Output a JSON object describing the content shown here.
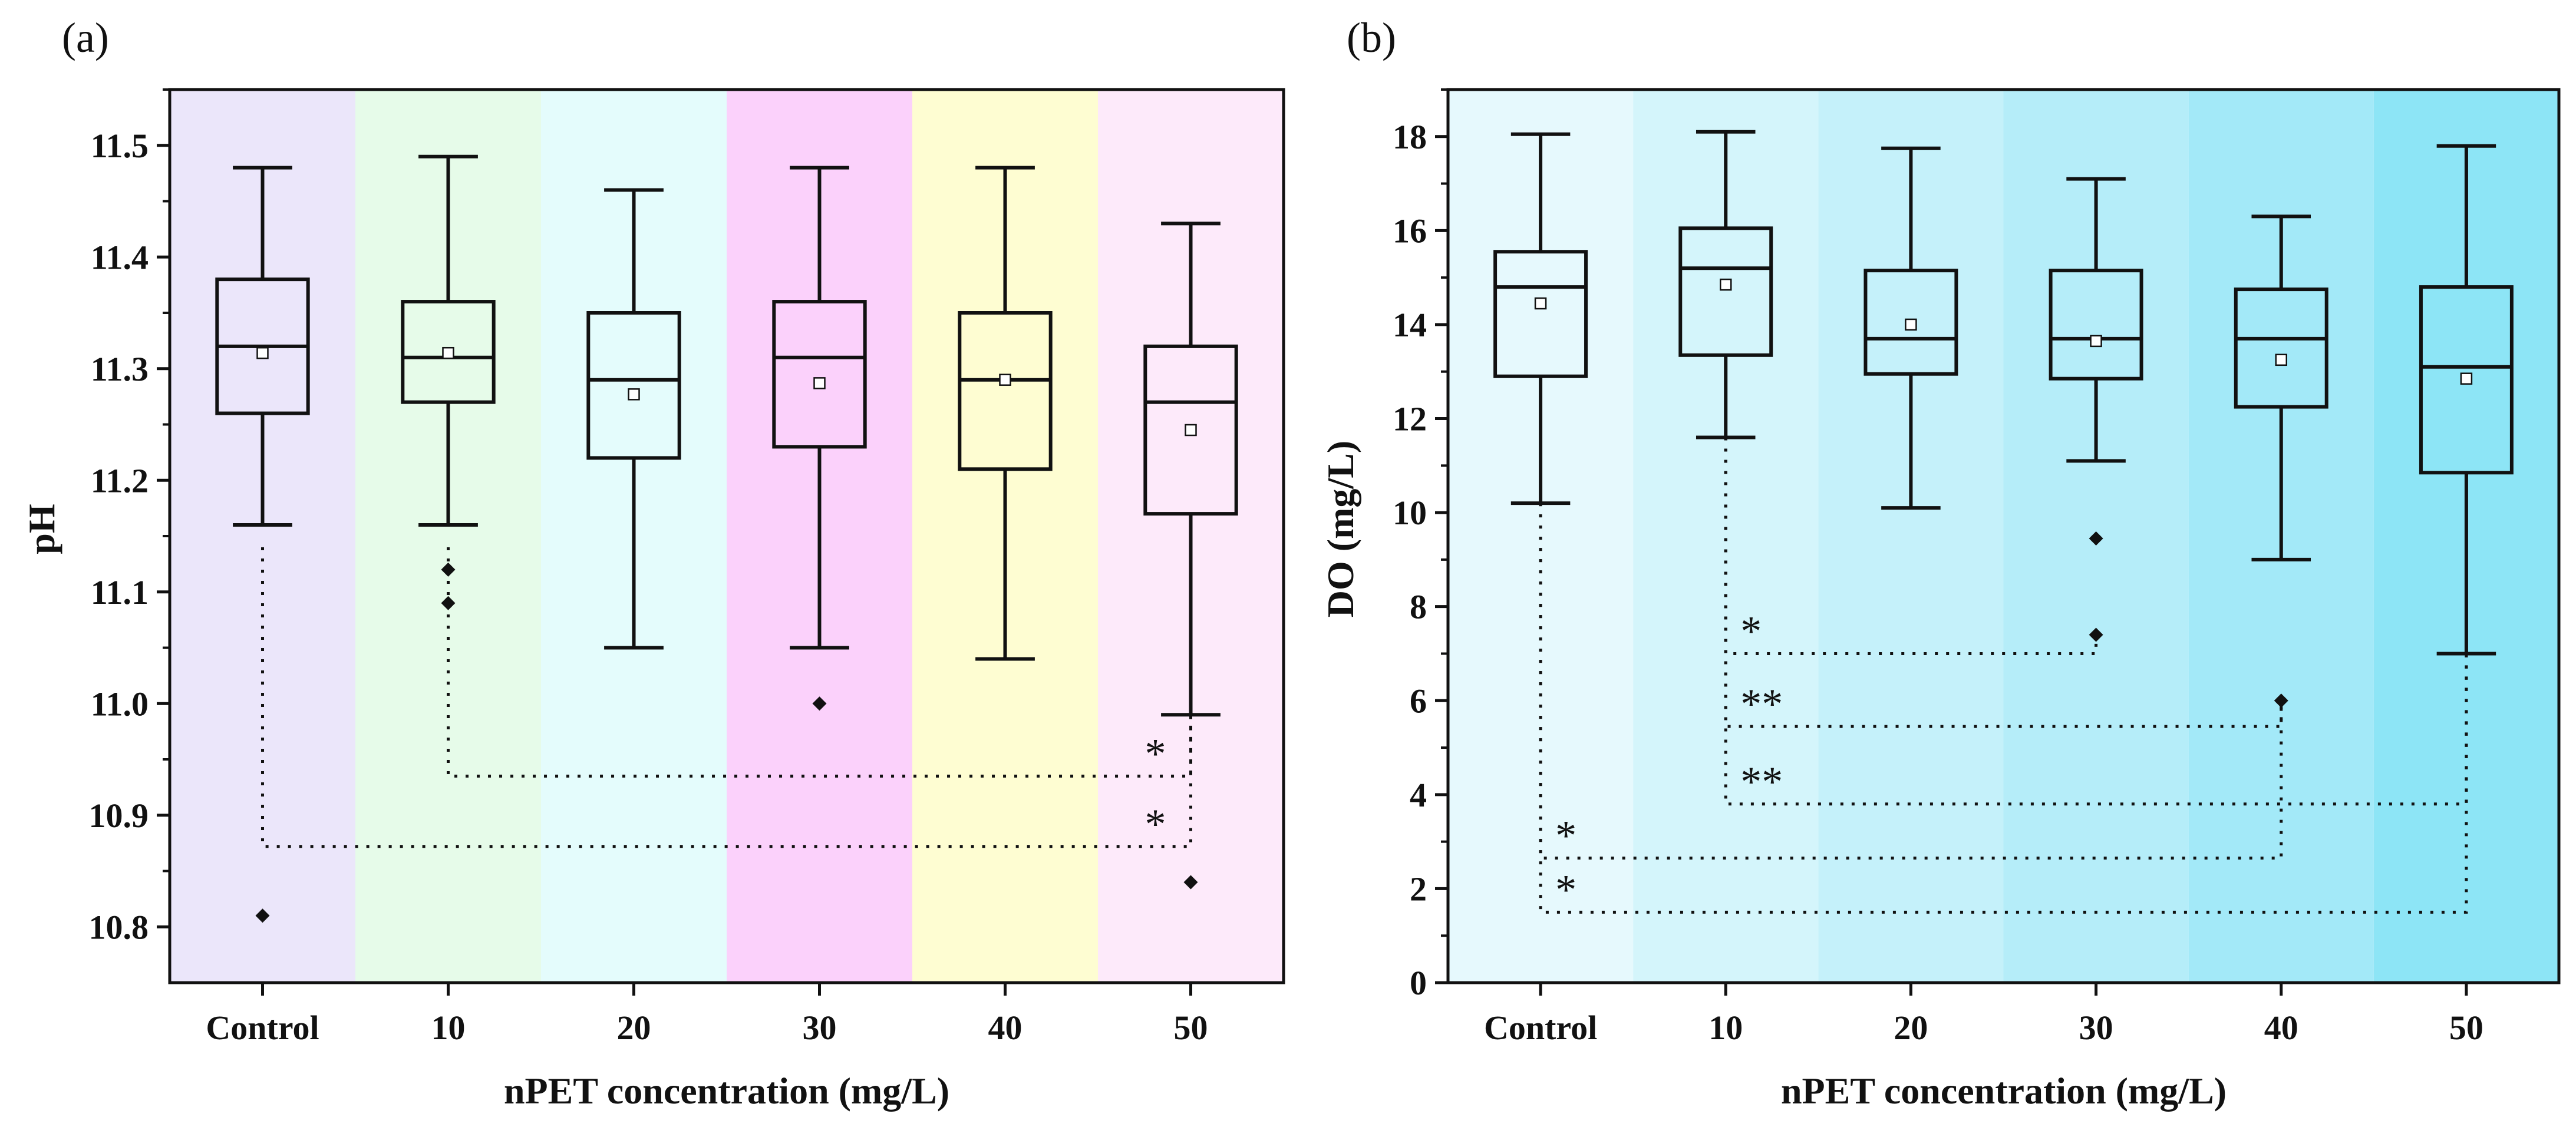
{
  "chart_data": [
    {
      "type": "box",
      "panel_label": "(a)",
      "xlabel": "nPET concentration (mg/L)",
      "ylabel": "pH",
      "categories": [
        "Control",
        "10",
        "20",
        "30",
        "40",
        "50"
      ],
      "ylim": [
        10.75,
        11.55
      ],
      "yticks": [
        "10.8",
        "10.9",
        "11.0",
        "11.1",
        "11.2",
        "11.3",
        "11.4",
        "11.5"
      ],
      "band_colors": [
        "#ebe6fa",
        "#e6fbe9",
        "#e4fcfc",
        "#fbd1fb",
        "#fefdd2",
        "#fdeafa"
      ],
      "boxes": [
        {
          "category": "Control",
          "whisker_low": 11.16,
          "q1": 11.26,
          "median": 11.32,
          "q3": 11.38,
          "whisker_high": 11.48,
          "mean": 11.314,
          "outliers": [
            10.81
          ]
        },
        {
          "category": "10",
          "whisker_low": 11.16,
          "q1": 11.27,
          "median": 11.31,
          "q3": 11.36,
          "whisker_high": 11.49,
          "mean": 11.314,
          "outliers": [
            11.09,
            11.12
          ]
        },
        {
          "category": "20",
          "whisker_low": 11.05,
          "q1": 11.22,
          "median": 11.29,
          "q3": 11.35,
          "whisker_high": 11.46,
          "mean": 11.277,
          "outliers": []
        },
        {
          "category": "30",
          "whisker_low": 11.05,
          "q1": 11.23,
          "median": 11.31,
          "q3": 11.36,
          "whisker_high": 11.48,
          "mean": 11.287,
          "outliers": [
            11.0
          ]
        },
        {
          "category": "40",
          "whisker_low": 11.04,
          "q1": 11.21,
          "median": 11.29,
          "q3": 11.35,
          "whisker_high": 11.48,
          "mean": 11.29,
          "outliers": []
        },
        {
          "category": "50",
          "whisker_low": 10.99,
          "q1": 11.17,
          "median": 11.27,
          "q3": 11.32,
          "whisker_high": 11.43,
          "mean": 11.245,
          "outliers": [
            10.84
          ]
        }
      ],
      "significance": [
        {
          "from": "10",
          "to": "50",
          "level": 10.935,
          "from_top": 11.14,
          "to_top": 10.99,
          "label": "*"
        },
        {
          "from": "Control",
          "to": "50",
          "level": 10.872,
          "from_top": 11.14,
          "to_top": 10.99,
          "label": "*"
        }
      ]
    },
    {
      "type": "box",
      "panel_label": "(b)",
      "xlabel": "nPET concentration (mg/L)",
      "ylabel": "DO (mg/L)",
      "categories": [
        "Control",
        "10",
        "20",
        "30",
        "40",
        "50"
      ],
      "ylim": [
        0,
        19
      ],
      "yticks": [
        "0",
        "2",
        "4",
        "6",
        "8",
        "10",
        "12",
        "14",
        "16",
        "18"
      ],
      "band_colors": [
        "#e6f9fd",
        "#d4f5fb",
        "#c5f1fa",
        "#b5edf9",
        "#a3e9f8",
        "#8de5f6"
      ],
      "boxes": [
        {
          "category": "Control",
          "whisker_low": 10.2,
          "q1": 12.9,
          "median": 14.8,
          "q3": 15.55,
          "whisker_high": 18.05,
          "mean": 14.45,
          "outliers": []
        },
        {
          "category": "10",
          "whisker_low": 11.6,
          "q1": 13.35,
          "median": 15.2,
          "q3": 16.05,
          "whisker_high": 18.1,
          "mean": 14.85,
          "outliers": []
        },
        {
          "category": "20",
          "whisker_low": 10.1,
          "q1": 12.95,
          "median": 13.7,
          "q3": 15.15,
          "whisker_high": 17.75,
          "mean": 14.0,
          "outliers": []
        },
        {
          "category": "30",
          "whisker_low": 11.1,
          "q1": 12.85,
          "median": 13.7,
          "q3": 15.15,
          "whisker_high": 17.1,
          "mean": 13.65,
          "outliers": [
            9.45,
            7.4
          ]
        },
        {
          "category": "40",
          "whisker_low": 9.0,
          "q1": 12.25,
          "median": 13.7,
          "q3": 14.75,
          "whisker_high": 16.3,
          "mean": 13.25,
          "outliers": [
            6.0
          ]
        },
        {
          "category": "50",
          "whisker_low": 7.0,
          "q1": 10.85,
          "median": 13.1,
          "q3": 14.8,
          "whisker_high": 17.8,
          "mean": 12.85,
          "outliers": []
        }
      ],
      "significance": [
        {
          "from": "10",
          "to": "30",
          "level": 7.0,
          "from_top": 11.6,
          "to_top": 7.4,
          "label": "*"
        },
        {
          "from": "10",
          "to": "40",
          "level": 5.45,
          "from_top": 11.6,
          "to_top": 6.0,
          "label": "**"
        },
        {
          "from": "10",
          "to": "50",
          "level": 3.8,
          "from_top": 11.6,
          "to_top": 7.0,
          "label": "**"
        },
        {
          "from": "Control",
          "to": "40",
          "level": 2.65,
          "from_top": 10.2,
          "to_top": 6.0,
          "label": "*"
        },
        {
          "from": "Control",
          "to": "50",
          "level": 1.5,
          "from_top": 10.2,
          "to_top": 7.0,
          "label": "*"
        }
      ]
    }
  ]
}
